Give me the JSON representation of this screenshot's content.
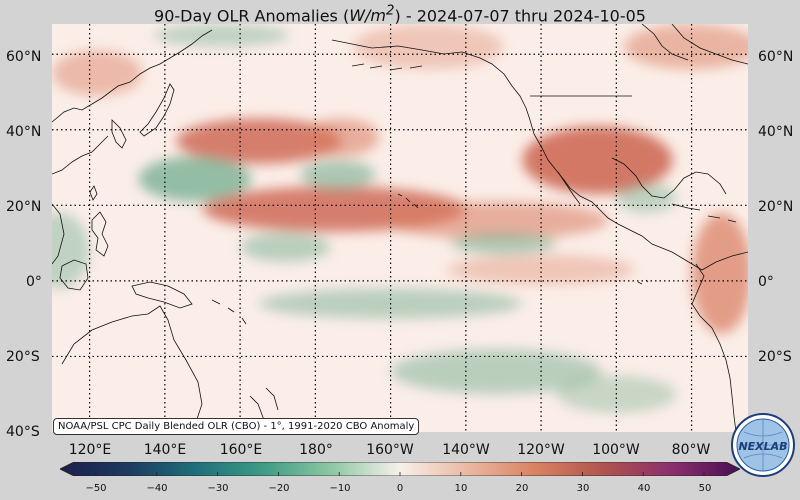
{
  "title": {
    "prefix": "90-Day OLR Anomalies (",
    "units": "W/m",
    "units_sup": "2",
    "suffix": ") - 2024-07-07 thru 2024-10-05"
  },
  "lat_labels": [
    "60°N",
    "40°N",
    "20°N",
    "0°",
    "20°S",
    "40°S"
  ],
  "lon_labels": [
    "120°E",
    "140°E",
    "160°E",
    "180°",
    "160°W",
    "140°W",
    "120°W",
    "100°W",
    "80°W"
  ],
  "source_note": "NOAA/PSL CPC Daily Blended OLR (CBO) - 1°, 1991-2020 CBO Anomaly",
  "colorbar": {
    "ticks": [
      "−50",
      "−40",
      "−30",
      "−20",
      "−10",
      "0",
      "10",
      "20",
      "30",
      "40",
      "50"
    ],
    "colors": [
      "#1b1f4a",
      "#1e3a5f",
      "#1f6f7a",
      "#3f9c86",
      "#8fc7a4",
      "#f7f0ea",
      "#eab8a1",
      "#d88262",
      "#b0534f",
      "#8a2f6e",
      "#4a0f52"
    ]
  },
  "logo": {
    "text": "NEXLAB"
  },
  "map_palette": {
    "background": "#fbeee8",
    "positive": "#d97a5e",
    "strong_positive": "#c95a44",
    "negative": "#6aa888",
    "coast": "#111111",
    "grid": "#000000"
  },
  "map_extent": {
    "lon_min": 110,
    "lon_max": 295,
    "lat_min": -40,
    "lat_max": 68
  },
  "anomaly_regions": [
    {
      "sign": "positive",
      "lon": 165,
      "lat": 37,
      "rx": 22,
      "ry": 6,
      "strength": 0.75
    },
    {
      "sign": "positive",
      "lon": 187,
      "lat": 38,
      "rx": 10,
      "ry": 5,
      "strength": 0.55
    },
    {
      "sign": "positive",
      "lon": 255,
      "lat": 32,
      "rx": 20,
      "ry": 9,
      "strength": 0.8
    },
    {
      "sign": "positive",
      "lon": 185,
      "lat": 19,
      "rx": 35,
      "ry": 6,
      "strength": 0.75
    },
    {
      "sign": "positive",
      "lon": 228,
      "lat": 16,
      "rx": 30,
      "ry": 5,
      "strength": 0.55
    },
    {
      "sign": "positive",
      "lon": 288,
      "lat": 2,
      "rx": 8,
      "ry": 16,
      "strength": 0.7
    },
    {
      "sign": "positive",
      "lon": 122,
      "lat": 55,
      "rx": 12,
      "ry": 6,
      "strength": 0.45
    },
    {
      "sign": "positive",
      "lon": 210,
      "lat": 62,
      "rx": 20,
      "ry": 6,
      "strength": 0.35
    },
    {
      "sign": "positive",
      "lon": 280,
      "lat": 62,
      "rx": 18,
      "ry": 6,
      "strength": 0.5
    },
    {
      "sign": "positive",
      "lon": 240,
      "lat": 3,
      "rx": 25,
      "ry": 4,
      "strength": 0.35
    },
    {
      "sign": "negative",
      "lon": 148,
      "lat": 27,
      "rx": 15,
      "ry": 6,
      "strength": 0.7
    },
    {
      "sign": "negative",
      "lon": 186,
      "lat": 28,
      "rx": 10,
      "ry": 4,
      "strength": 0.55
    },
    {
      "sign": "negative",
      "lon": 172,
      "lat": 9,
      "rx": 12,
      "ry": 4,
      "strength": 0.45
    },
    {
      "sign": "negative",
      "lon": 200,
      "lat": -6,
      "rx": 35,
      "ry": 4,
      "strength": 0.45
    },
    {
      "sign": "negative",
      "lon": 230,
      "lat": 10,
      "rx": 14,
      "ry": 3,
      "strength": 0.5
    },
    {
      "sign": "negative",
      "lon": 228,
      "lat": -24,
      "rx": 28,
      "ry": 6,
      "strength": 0.45
    },
    {
      "sign": "negative",
      "lon": 260,
      "lat": -30,
      "rx": 16,
      "ry": 5,
      "strength": 0.35
    },
    {
      "sign": "negative",
      "lon": 155,
      "lat": 65,
      "rx": 18,
      "ry": 3,
      "strength": 0.4
    },
    {
      "sign": "negative",
      "lon": 112,
      "lat": 8,
      "rx": 8,
      "ry": 10,
      "strength": 0.4
    },
    {
      "sign": "negative",
      "lon": 268,
      "lat": 22,
      "rx": 8,
      "ry": 4,
      "strength": 0.4
    }
  ]
}
